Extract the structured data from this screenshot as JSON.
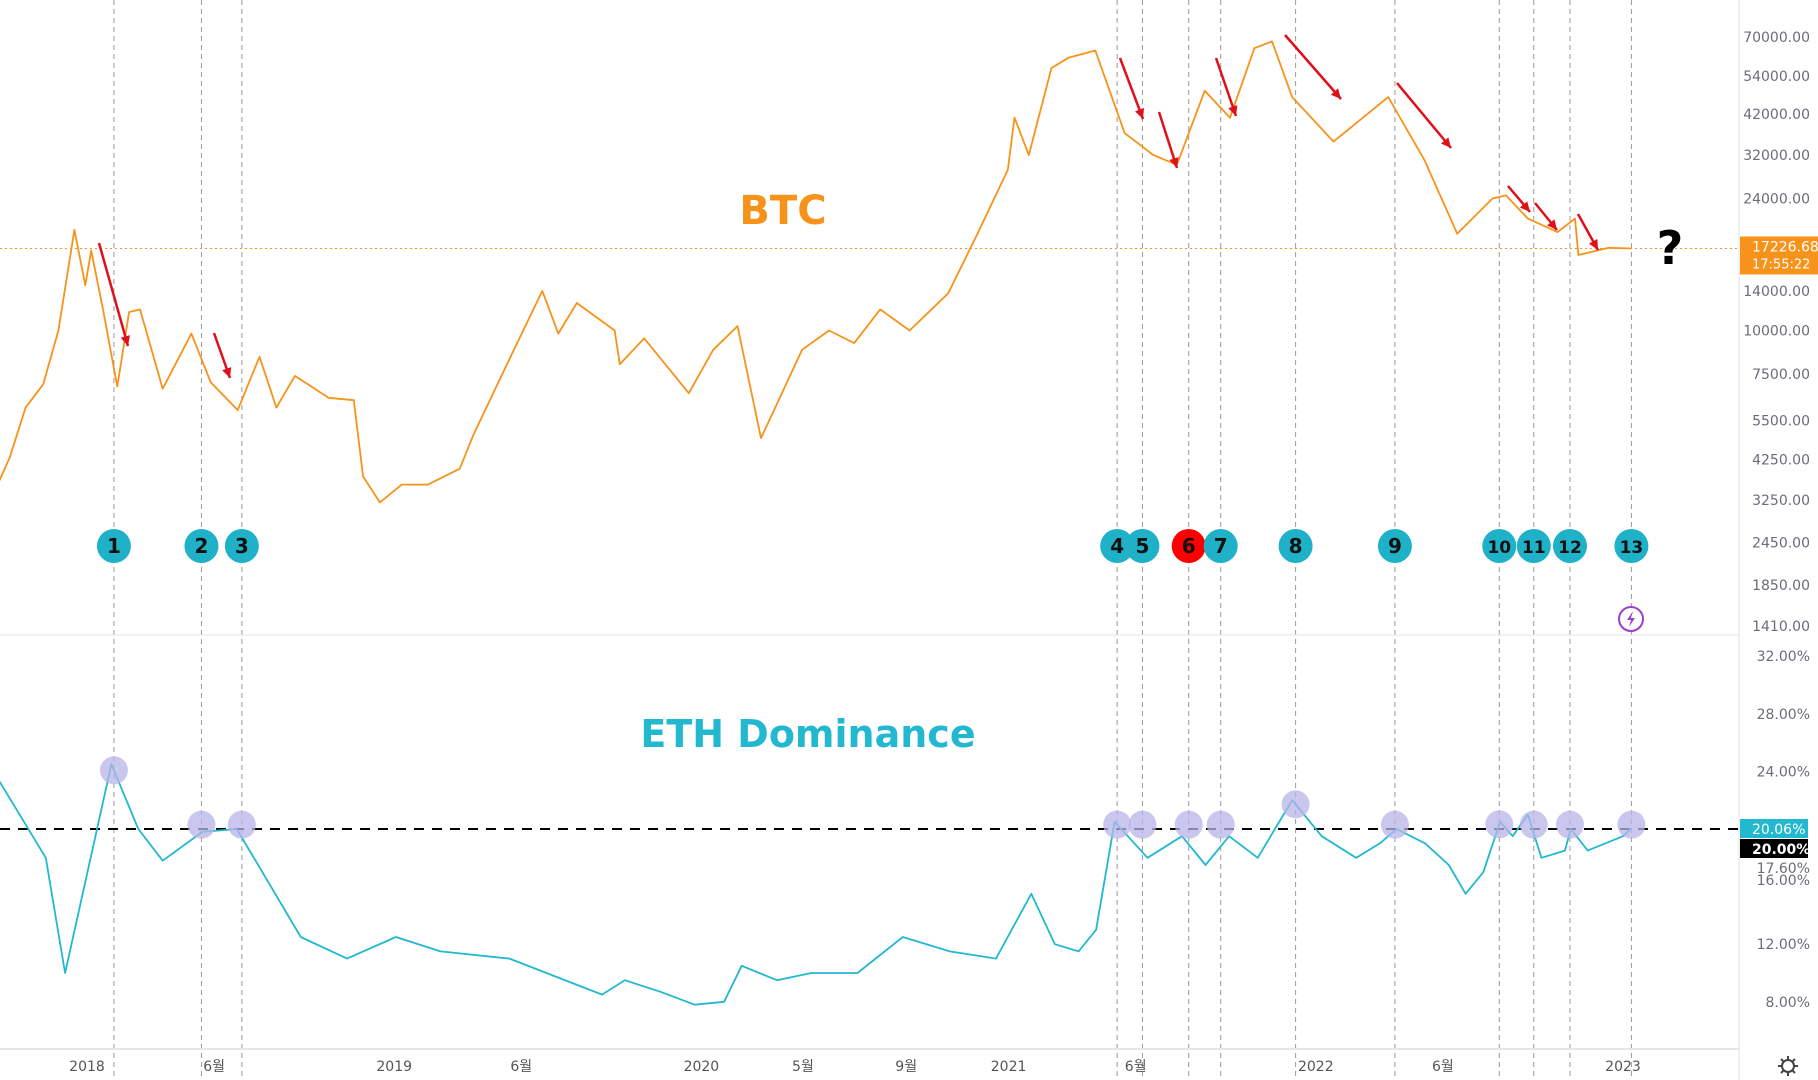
{
  "colors": {
    "btc": "#f7931a",
    "eth": "#22b8cf",
    "event": "#1fb1c8",
    "event_highlight": "#ff0000",
    "arrow": "#e0101a",
    "eth_marker": "#b8b4e8",
    "reference_line": "#000000"
  },
  "chart_data": [
    {
      "type": "line",
      "title": "BTC",
      "scale": "log",
      "ylim": [
        1410,
        70000
      ],
      "yticks": [
        "70000.00",
        "54000.00",
        "42000.00",
        "32000.00",
        "24000.00",
        "14000.00",
        "10000.00",
        "7500.00",
        "5500.00",
        "4250.00",
        "3250.00",
        "2450.00",
        "1850.00",
        "1410.00"
      ],
      "ytick_values": [
        70000,
        54000,
        42000,
        32000,
        24000,
        14000,
        10000,
        7500,
        5500,
        4250,
        3250,
        2450,
        1850,
        1410
      ],
      "last_price_label": "17226.68",
      "countdown_label": "17:55:22",
      "last_price": 17226.68,
      "question_mark": "?",
      "series": [
        {
          "points": [
            [
              "2017-09-19",
              3700
            ],
            [
              "2017-10-01",
              4300
            ],
            [
              "2017-10-20",
              6000
            ],
            [
              "2017-11-10",
              7000
            ],
            [
              "2017-11-28",
              10000
            ],
            [
              "2017-12-17",
              19500
            ],
            [
              "2017-12-30",
              13500
            ],
            [
              "2018-01-06",
              17000
            ],
            [
              "2018-01-20",
              11500
            ],
            [
              "2018-02-06",
              6900
            ],
            [
              "2018-02-20",
              11300
            ],
            [
              "2018-03-05",
              11500
            ],
            [
              "2018-04-01",
              6800
            ],
            [
              "2018-05-05",
              9800
            ],
            [
              "2018-05-28",
              7100
            ],
            [
              "2018-06-29",
              5900
            ],
            [
              "2018-07-25",
              8400
            ],
            [
              "2018-08-14",
              6000
            ],
            [
              "2018-09-05",
              7400
            ],
            [
              "2018-10-15",
              6400
            ],
            [
              "2018-11-14",
              6300
            ],
            [
              "2018-11-25",
              3800
            ],
            [
              "2018-12-15",
              3200
            ],
            [
              "2019-01-10",
              3600
            ],
            [
              "2019-02-10",
              3600
            ],
            [
              "2019-03-20",
              4000
            ],
            [
              "2019-04-05",
              5000
            ],
            [
              "2019-05-15",
              8000
            ],
            [
              "2019-06-26",
              13000
            ],
            [
              "2019-07-15",
              9800
            ],
            [
              "2019-08-06",
              12000
            ],
            [
              "2019-09-20",
              10000
            ],
            [
              "2019-09-26",
              8000
            ],
            [
              "2019-10-25",
              9500
            ],
            [
              "2019-12-17",
              6600
            ],
            [
              "2020-01-15",
              8800
            ],
            [
              "2020-02-13",
              10300
            ],
            [
              "2020-03-12",
              4900
            ],
            [
              "2020-04-30",
              8800
            ],
            [
              "2020-06-01",
              10000
            ],
            [
              "2020-07-01",
              9200
            ],
            [
              "2020-08-01",
              11500
            ],
            [
              "2020-09-05",
              10000
            ],
            [
              "2020-10-21",
              12800
            ],
            [
              "2020-11-25",
              19000
            ],
            [
              "2020-12-31",
              29000
            ],
            [
              "2021-01-08",
              41000
            ],
            [
              "2021-01-25",
              32000
            ],
            [
              "2021-02-21",
              57000
            ],
            [
              "2021-03-13",
              61000
            ],
            [
              "2021-04-14",
              64000
            ],
            [
              "2021-05-19",
              37000
            ],
            [
              "2021-06-22",
              32000
            ],
            [
              "2021-07-20",
              30000
            ],
            [
              "2021-08-22",
              49000
            ],
            [
              "2021-09-21",
              41000
            ],
            [
              "2021-10-20",
              65000
            ],
            [
              "2021-11-10",
              68000
            ],
            [
              "2021-12-04",
              47000
            ],
            [
              "2022-01-22",
              35000
            ],
            [
              "2022-03-28",
              47000
            ],
            [
              "2022-05-10",
              31000
            ],
            [
              "2022-06-18",
              19000
            ],
            [
              "2022-07-30",
              24000
            ],
            [
              "2022-08-15",
              24500
            ],
            [
              "2022-09-10",
              21000
            ],
            [
              "2022-10-15",
              19200
            ],
            [
              "2022-11-05",
              21000
            ],
            [
              "2022-11-09",
              16500
            ],
            [
              "2022-12-15",
              17300
            ],
            [
              "2023-01-11",
              17226.68
            ]
          ]
        }
      ]
    },
    {
      "type": "line",
      "title": "ETH Dominance",
      "ylim": [
        6,
        33
      ],
      "yticks": [
        "32.00%",
        "28.00%",
        "24.00%",
        "17.60%",
        "16.00%",
        "12.00%",
        "8.00%"
      ],
      "ytick_values": [
        32,
        28,
        24,
        17.6,
        16,
        12,
        8
      ],
      "last_value_label": "20.06%",
      "reference_label": "20.00%",
      "reference_value": 20,
      "series": [
        {
          "points": [
            [
              "2017-09-19",
              23.3
            ],
            [
              "2017-11-13",
              18
            ],
            [
              "2017-12-06",
              10
            ],
            [
              "2018-01-30",
              24.5
            ],
            [
              "2018-03-03",
              20
            ],
            [
              "2018-04-01",
              17.8
            ],
            [
              "2018-05-18",
              19.8
            ],
            [
              "2018-06-28",
              20
            ],
            [
              "2018-09-12",
              12.5
            ],
            [
              "2018-11-06",
              11
            ],
            [
              "2019-01-03",
              12.5
            ],
            [
              "2019-02-25",
              11.5
            ],
            [
              "2019-05-18",
              11
            ],
            [
              "2019-09-05",
              8.5
            ],
            [
              "2019-10-02",
              9.5
            ],
            [
              "2019-11-13",
              8.7
            ],
            [
              "2019-12-24",
              7.8
            ],
            [
              "2020-01-28",
              8
            ],
            [
              "2020-02-18",
              10.5
            ],
            [
              "2020-03-31",
              9.5
            ],
            [
              "2020-05-11",
              10
            ],
            [
              "2020-07-05",
              10
            ],
            [
              "2020-08-28",
              12.5
            ],
            [
              "2020-10-23",
              11.5
            ],
            [
              "2020-12-17",
              11
            ],
            [
              "2021-01-28",
              15.5
            ],
            [
              "2021-02-25",
              12
            ],
            [
              "2021-03-25",
              11.5
            ],
            [
              "2021-04-15",
              13
            ],
            [
              "2021-05-07",
              20.5
            ],
            [
              "2021-06-15",
              18
            ],
            [
              "2021-07-26",
              19.5
            ],
            [
              "2021-08-23",
              17.5
            ],
            [
              "2021-09-20",
              19.5
            ],
            [
              "2021-10-24",
              18
            ],
            [
              "2021-12-04",
              22
            ],
            [
              "2022-01-08",
              19.5
            ],
            [
              "2022-02-18",
              18
            ],
            [
              "2022-03-18",
              19
            ],
            [
              "2022-04-07",
              20
            ],
            [
              "2022-05-11",
              19
            ],
            [
              "2022-06-08",
              17.5
            ],
            [
              "2022-06-28",
              15.5
            ],
            [
              "2022-07-19",
              17
            ],
            [
              "2022-08-08",
              20.5
            ],
            [
              "2022-08-23",
              19.5
            ],
            [
              "2022-09-10",
              21
            ],
            [
              "2022-09-26",
              18
            ],
            [
              "2022-10-24",
              18.5
            ],
            [
              "2022-10-31",
              20
            ],
            [
              "2022-11-20",
              18.5
            ],
            [
              "2023-01-01",
              19.5
            ],
            [
              "2023-01-11",
              20.06
            ]
          ]
        }
      ]
    }
  ],
  "xaxis": {
    "ticks": [
      {
        "label": "2018",
        "date": "2018-01-01"
      },
      {
        "label": "6월",
        "date": "2018-06-01"
      },
      {
        "label": "2019",
        "date": "2019-01-01"
      },
      {
        "label": "6월",
        "date": "2019-06-01"
      },
      {
        "label": "2020",
        "date": "2020-01-01"
      },
      {
        "label": "5월",
        "date": "2020-05-01"
      },
      {
        "label": "9월",
        "date": "2020-09-01"
      },
      {
        "label": "2021",
        "date": "2021-01-01"
      },
      {
        "label": "6월",
        "date": "2021-06-01"
      },
      {
        "label": "2022",
        "date": "2022-01-01"
      },
      {
        "label": "6월",
        "date": "2022-06-01"
      },
      {
        "label": "2023",
        "date": "2023-01-01"
      }
    ]
  },
  "events": [
    {
      "label": "1",
      "date": "2018-02-02"
    },
    {
      "label": "2",
      "date": "2018-05-17"
    },
    {
      "label": "3",
      "date": "2018-07-04"
    },
    {
      "label": "4",
      "date": "2021-05-10"
    },
    {
      "label": "5",
      "date": "2021-06-09"
    },
    {
      "label": "6",
      "date": "2021-08-03",
      "highlight": true
    },
    {
      "label": "7",
      "date": "2021-09-10"
    },
    {
      "label": "8",
      "date": "2021-12-08"
    },
    {
      "label": "9",
      "date": "2022-04-05"
    },
    {
      "label": "10",
      "date": "2022-08-07"
    },
    {
      "label": "11",
      "date": "2022-09-17"
    },
    {
      "label": "12",
      "date": "2022-10-30"
    },
    {
      "label": "13",
      "date": "2023-01-11"
    }
  ],
  "icons": {
    "alert": "lightning-icon",
    "settings": "gear-icon"
  }
}
